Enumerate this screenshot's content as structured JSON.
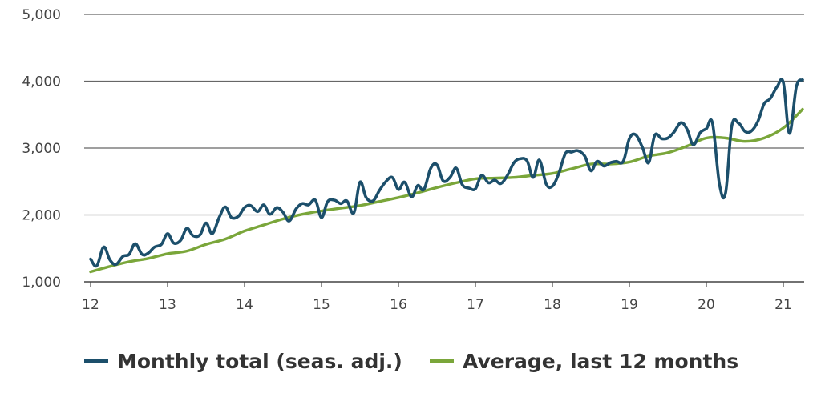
{
  "chart_data": {
    "type": "line",
    "x_label": "",
    "y_label": "",
    "title": "",
    "ylim": [
      1000,
      5000
    ],
    "xlim": [
      12,
      21.25
    ],
    "x_ticks": [
      "12",
      "13",
      "14",
      "15",
      "16",
      "17",
      "18",
      "19",
      "20",
      "21"
    ],
    "y_ticks": [
      "1,000",
      "2,000",
      "3,000",
      "4,000",
      "5,000"
    ],
    "grid": "horizontal",
    "legend_position": "bottom",
    "colors": {
      "monthly": "#1c4f6b",
      "average": "#7aa63a",
      "grid": "#666666",
      "axis": "#444444"
    },
    "series": [
      {
        "name": "Monthly total (seas. adj.)",
        "key": "monthly",
        "x": [
          12.0,
          12.08,
          12.17,
          12.25,
          12.33,
          12.42,
          12.5,
          12.58,
          12.67,
          12.75,
          12.83,
          12.92,
          13.0,
          13.08,
          13.17,
          13.25,
          13.33,
          13.42,
          13.5,
          13.58,
          13.67,
          13.75,
          13.83,
          13.92,
          14.0,
          14.08,
          14.17,
          14.25,
          14.33,
          14.42,
          14.5,
          14.58,
          14.67,
          14.75,
          14.83,
          14.92,
          15.0,
          15.08,
          15.17,
          15.25,
          15.33,
          15.42,
          15.5,
          15.58,
          15.67,
          15.75,
          15.83,
          15.92,
          16.0,
          16.08,
          16.17,
          16.25,
          16.33,
          16.42,
          16.5,
          16.58,
          16.67,
          16.75,
          16.83,
          16.92,
          17.0,
          17.08,
          17.17,
          17.25,
          17.33,
          17.42,
          17.5,
          17.58,
          17.67,
          17.75,
          17.83,
          17.92,
          18.0,
          18.08,
          18.17,
          18.25,
          18.33,
          18.42,
          18.5,
          18.58,
          18.67,
          18.75,
          18.83,
          18.92,
          19.0,
          19.08,
          19.17,
          19.25,
          19.33,
          19.42,
          19.5,
          19.58,
          19.67,
          19.75,
          19.83,
          19.92,
          20.0,
          20.08,
          20.17,
          20.25,
          20.33,
          20.42,
          20.5,
          20.58,
          20.67,
          20.75,
          20.83,
          20.92,
          21.0,
          21.08,
          21.17,
          21.25
        ],
        "y": [
          1340,
          1240,
          1520,
          1330,
          1260,
          1380,
          1410,
          1570,
          1410,
          1430,
          1520,
          1560,
          1720,
          1580,
          1620,
          1800,
          1690,
          1700,
          1880,
          1720,
          1960,
          2120,
          1960,
          1980,
          2110,
          2140,
          2050,
          2150,
          2010,
          2110,
          2040,
          1910,
          2090,
          2170,
          2150,
          2220,
          1960,
          2200,
          2220,
          2170,
          2210,
          2030,
          2490,
          2260,
          2210,
          2360,
          2490,
          2560,
          2380,
          2490,
          2270,
          2440,
          2380,
          2700,
          2750,
          2510,
          2560,
          2700,
          2450,
          2400,
          2390,
          2590,
          2480,
          2520,
          2470,
          2600,
          2780,
          2840,
          2810,
          2560,
          2820,
          2460,
          2430,
          2610,
          2920,
          2940,
          2960,
          2880,
          2660,
          2800,
          2730,
          2780,
          2800,
          2800,
          3140,
          3200,
          3010,
          2780,
          3190,
          3140,
          3150,
          3240,
          3380,
          3280,
          3050,
          3230,
          3290,
          3370,
          2460,
          2330,
          3330,
          3370,
          3250,
          3250,
          3400,
          3660,
          3740,
          3920,
          3980,
          3220,
          3920,
          4020
        ]
      },
      {
        "name": "Average, last 12 months",
        "key": "average",
        "x": [
          12.0,
          12.25,
          12.5,
          12.75,
          13.0,
          13.25,
          13.5,
          13.75,
          14.0,
          14.25,
          14.5,
          14.75,
          15.0,
          15.25,
          15.5,
          15.75,
          16.0,
          16.25,
          16.5,
          16.75,
          17.0,
          17.25,
          17.5,
          17.75,
          18.0,
          18.25,
          18.5,
          18.75,
          19.0,
          19.25,
          19.5,
          19.75,
          20.0,
          20.25,
          20.5,
          20.75,
          21.0,
          21.25
        ],
        "y": [
          1150,
          1230,
          1300,
          1350,
          1420,
          1460,
          1560,
          1640,
          1760,
          1850,
          1940,
          2010,
          2060,
          2100,
          2140,
          2200,
          2260,
          2330,
          2410,
          2480,
          2540,
          2550,
          2560,
          2590,
          2620,
          2690,
          2760,
          2760,
          2790,
          2880,
          2930,
          3030,
          3150,
          3150,
          3100,
          3150,
          3300,
          3580
        ]
      }
    ]
  }
}
